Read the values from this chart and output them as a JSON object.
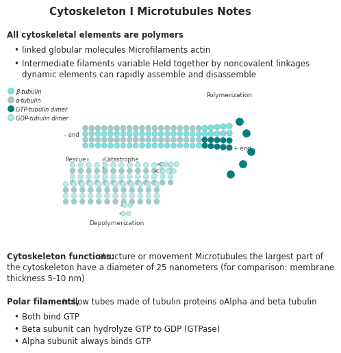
{
  "title": "Cytoskeleton I Microtubules Notes",
  "bg_color": "#ffffff",
  "text_color": "#2a2a2a",
  "section1_bold": "All cytoskeletal elements are polymers",
  "bullet1": "linked globular molecules Microfilaments actin",
  "bullet2": "Intermediate filaments variable Held together by noncovalent linkages",
  "bullet2b": "dynamic elements can rapidly assemble and disassemble",
  "legend_items": [
    {
      "label": "β-tubulin",
      "color": "#7fe0e0"
    },
    {
      "label": "α-tubulin",
      "color": "#c0c0c0"
    },
    {
      "label": "GTP-tubulin dimer",
      "color": "#008080"
    },
    {
      "label": "GDP-tubulin dimer",
      "color": "#a8e8e8"
    }
  ],
  "section2_bold": "Cytoskeleton functions:",
  "section2_line1": " structure or movement Microtubules the largest part of",
  "section2_line2": "the cytoskeleton have a diameter of 25 nanometers (for comparison: membrane",
  "section2_line3": "thickness 5-10 nm)",
  "section3_bold": "Polar filaments,",
  "section3_normal": " hollow tubes made of tubulin proteins oAlpha and beta tubulin",
  "bullet3": "Both bind GTP",
  "bullet4": "Beta subunit can hydrolyze GTP to GDP (GTPase)",
  "bullet5": "Alpha subunit always binds GTP",
  "mt_light": "#7fe0e0",
  "mt_gray": "#a8c8c8",
  "mt_dark": "#008080",
  "mt_pale": "#b8e8e8"
}
